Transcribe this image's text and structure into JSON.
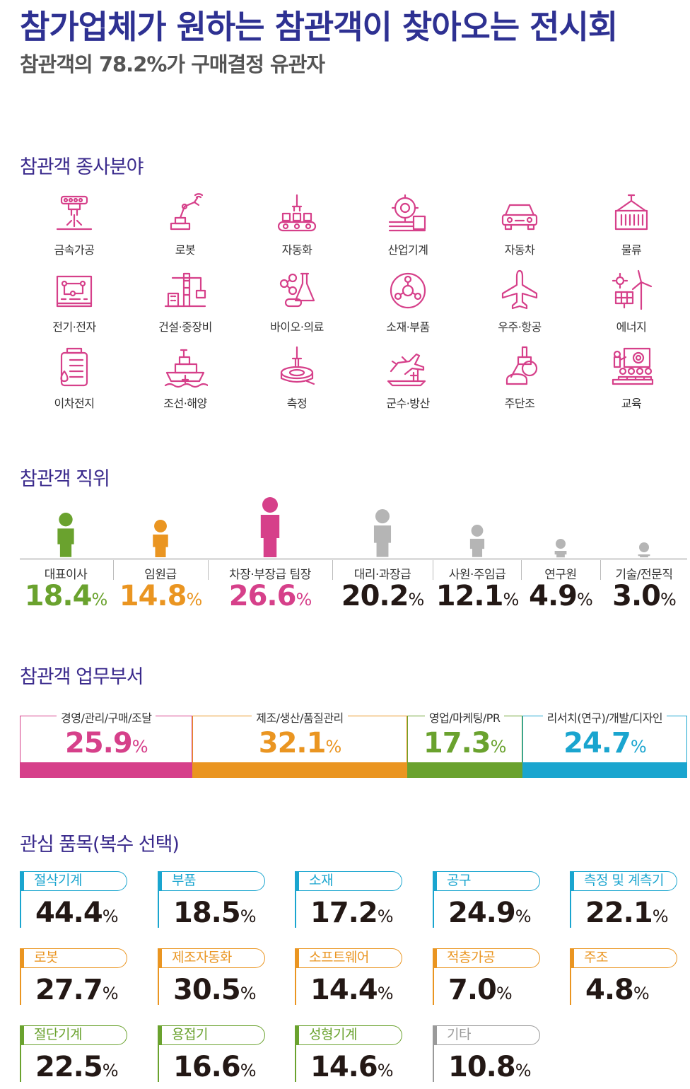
{
  "header": {
    "title": "참가업체가 원하는 참관객이 찾아오는 전시회",
    "subtitle": "참관객의 78.2%가 구매결정 유관자"
  },
  "colors": {
    "accent": "#2e3192",
    "magenta": "#d6408a",
    "green": "#6aa22e",
    "orange": "#ea9521",
    "blue": "#1aa5cf",
    "gray": "#b5b5b5",
    "icon": "#d6408a"
  },
  "fields": {
    "title": "참관객 종사분야",
    "items": [
      {
        "label": "금속가공",
        "icon": "metal-processing-icon"
      },
      {
        "label": "로봇",
        "icon": "robot-arm-icon"
      },
      {
        "label": "자동화",
        "icon": "automation-conveyor-icon"
      },
      {
        "label": "산업기계",
        "icon": "industrial-machine-icon"
      },
      {
        "label": "자동차",
        "icon": "car-icon"
      },
      {
        "label": "물류",
        "icon": "logistics-container-icon"
      },
      {
        "label": "전기·전자",
        "icon": "circuit-board-icon"
      },
      {
        "label": "건설·중장비",
        "icon": "construction-crane-icon"
      },
      {
        "label": "바이오·의료",
        "icon": "bio-medical-icon"
      },
      {
        "label": "소재·부품",
        "icon": "material-parts-icon"
      },
      {
        "label": "우주·항공",
        "icon": "airplane-icon"
      },
      {
        "label": "에너지",
        "icon": "energy-solar-wind-icon"
      },
      {
        "label": "이차전지",
        "icon": "battery-icon"
      },
      {
        "label": "조선·해양",
        "icon": "ship-icon"
      },
      {
        "label": "측정",
        "icon": "measurement-icon"
      },
      {
        "label": "군수·방산",
        "icon": "defense-icon"
      },
      {
        "label": "주단조",
        "icon": "casting-forging-icon"
      },
      {
        "label": "교육",
        "icon": "education-icon"
      }
    ]
  },
  "positions": {
    "title": "참관객 직위",
    "items": [
      {
        "label": "대표이사",
        "num": "18.4",
        "pct": "%",
        "color": "#6aa22e",
        "value": 18.4
      },
      {
        "label": "임원급",
        "num": "14.8",
        "pct": "%",
        "color": "#ea9521",
        "value": 14.8
      },
      {
        "label": "차장·부장급 팀장",
        "num": "26.6",
        "pct": "%",
        "color": "#d6408a",
        "value": 26.6
      },
      {
        "label": "대리·과장급",
        "num": "20.2",
        "pct": "%",
        "color": "#b5b5b5",
        "value": 20.2
      },
      {
        "label": "사원·주임급",
        "num": "12.1",
        "pct": "%",
        "color": "#b5b5b5",
        "value": 12.1
      },
      {
        "label": "연구원",
        "num": "4.9",
        "pct": "%",
        "color": "#b5b5b5",
        "value": 4.9
      },
      {
        "label": "기술/전문직",
        "num": "3.0",
        "pct": "%",
        "color": "#b5b5b5",
        "value": 3.0
      }
    ]
  },
  "departments": {
    "title": "참관객 업무부서",
    "items": [
      {
        "label": "경영/관리/구매/조달",
        "num": "25.9",
        "pct": "%",
        "color": "#d6408a",
        "value": 25.9
      },
      {
        "label": "제조/생산/품질관리",
        "num": "32.1",
        "pct": "%",
        "color": "#ea9521",
        "value": 32.1
      },
      {
        "label": "영업/마케팅/PR",
        "num": "17.3",
        "pct": "%",
        "color": "#6aa22e",
        "value": 17.3
      },
      {
        "label": "리서치(연구)/개발/디자인",
        "num": "24.7",
        "pct": "%",
        "color": "#1aa5cf",
        "value": 24.7
      }
    ]
  },
  "interests": {
    "title": "관심 품목(복수 선택)",
    "items": [
      {
        "label": "절삭기계",
        "num": "44.4",
        "pct": "%",
        "color": "#1aa5cf"
      },
      {
        "label": "부품",
        "num": "18.5",
        "pct": "%",
        "color": "#1aa5cf"
      },
      {
        "label": "소재",
        "num": "17.2",
        "pct": "%",
        "color": "#1aa5cf"
      },
      {
        "label": "공구",
        "num": "24.9",
        "pct": "%",
        "color": "#1aa5cf"
      },
      {
        "label": "측정 및 계측기",
        "num": "22.1",
        "pct": "%",
        "color": "#1aa5cf"
      },
      {
        "label": "로봇",
        "num": "27.7",
        "pct": "%",
        "color": "#ea9521"
      },
      {
        "label": "제조자동화",
        "num": "30.5",
        "pct": "%",
        "color": "#ea9521"
      },
      {
        "label": "소프트웨어",
        "num": "14.4",
        "pct": "%",
        "color": "#ea9521"
      },
      {
        "label": "적층가공",
        "num": "7.0",
        "pct": "%",
        "color": "#ea9521"
      },
      {
        "label": "주조",
        "num": "4.8",
        "pct": "%",
        "color": "#ea9521"
      },
      {
        "label": "절단기계",
        "num": "22.5",
        "pct": "%",
        "color": "#6aa22e"
      },
      {
        "label": "용접기",
        "num": "16.6",
        "pct": "%",
        "color": "#6aa22e"
      },
      {
        "label": "성형기계",
        "num": "14.6",
        "pct": "%",
        "color": "#6aa22e"
      },
      {
        "label": "기타",
        "num": "10.8",
        "pct": "%",
        "color": "#9a9a9a"
      }
    ]
  }
}
